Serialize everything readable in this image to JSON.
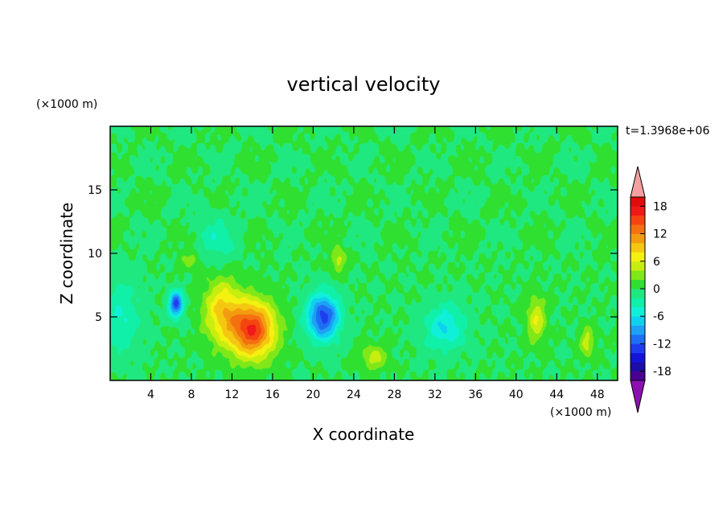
{
  "chart_data": {
    "type": "heatmap",
    "title": "vertical velocity",
    "time_label": "t=1.3968e+06",
    "xlabel": "X coordinate",
    "ylabel": "Z coordinate",
    "x_unit": "(×1000 m)",
    "y_unit": "(×1000 m)",
    "xlim": [
      0,
      50
    ],
    "ylim": [
      0,
      20
    ],
    "x_ticks": [
      4,
      8,
      12,
      16,
      20,
      24,
      28,
      32,
      36,
      40,
      44,
      48
    ],
    "y_ticks": [
      5,
      10,
      15
    ],
    "colorbar": {
      "levels": [
        -20,
        -18,
        -16,
        -14,
        -12,
        -10,
        -8,
        -6,
        -4,
        -2,
        0,
        2,
        4,
        6,
        8,
        10,
        12,
        14,
        16,
        18,
        20
      ],
      "tick_labels": [
        "18",
        "12",
        "6",
        "0",
        "-6",
        "-12",
        "-18"
      ],
      "tick_values": [
        18,
        12,
        6,
        0,
        -6,
        -12,
        -18
      ],
      "colors": [
        "#4a0090",
        "#1c0ca8",
        "#1414d8",
        "#1e3cf0",
        "#1e6ef4",
        "#1ea0f4",
        "#10d0f0",
        "#10f0d8",
        "#10f0a8",
        "#20e880",
        "#30e030",
        "#80e818",
        "#c8ee10",
        "#f4f010",
        "#f4c810",
        "#f49c10",
        "#f47010",
        "#f44410",
        "#f01818",
        "#e00c0c"
      ],
      "over_color": "#f4a0a0",
      "under_color": "#8c10b0"
    },
    "features": [
      {
        "x": 14.0,
        "z": 4.0,
        "value": 16,
        "sx": 2.2,
        "sz": 2.2
      },
      {
        "x": 11.0,
        "z": 5.5,
        "value": 8,
        "sx": 1.8,
        "sz": 2.5
      },
      {
        "x": 6.5,
        "z": 6.0,
        "value": -13,
        "sx": 0.7,
        "sz": 1.0
      },
      {
        "x": 21.0,
        "z": 5.0,
        "value": -13,
        "sx": 1.6,
        "sz": 1.8
      },
      {
        "x": 33.0,
        "z": 4.2,
        "value": -6,
        "sx": 2.0,
        "sz": 1.8
      },
      {
        "x": 42.0,
        "z": 4.8,
        "value": 6,
        "sx": 0.9,
        "sz": 1.8
      },
      {
        "x": 47.0,
        "z": 3.0,
        "value": 5,
        "sx": 0.7,
        "sz": 1.2
      },
      {
        "x": 26.0,
        "z": 1.8,
        "value": 5,
        "sx": 1.2,
        "sz": 1.0
      },
      {
        "x": 22.5,
        "z": 9.5,
        "value": 5,
        "sx": 0.7,
        "sz": 1.0
      },
      {
        "x": 8.0,
        "z": 9.5,
        "value": 3,
        "sx": 1.0,
        "sz": 0.8
      },
      {
        "x": 1.0,
        "z": 5.0,
        "value": -4,
        "sx": 2.0,
        "sz": 3.0
      },
      {
        "x": 10.5,
        "z": 11.0,
        "value": -3,
        "sx": 2.0,
        "sz": 2.0
      }
    ]
  }
}
